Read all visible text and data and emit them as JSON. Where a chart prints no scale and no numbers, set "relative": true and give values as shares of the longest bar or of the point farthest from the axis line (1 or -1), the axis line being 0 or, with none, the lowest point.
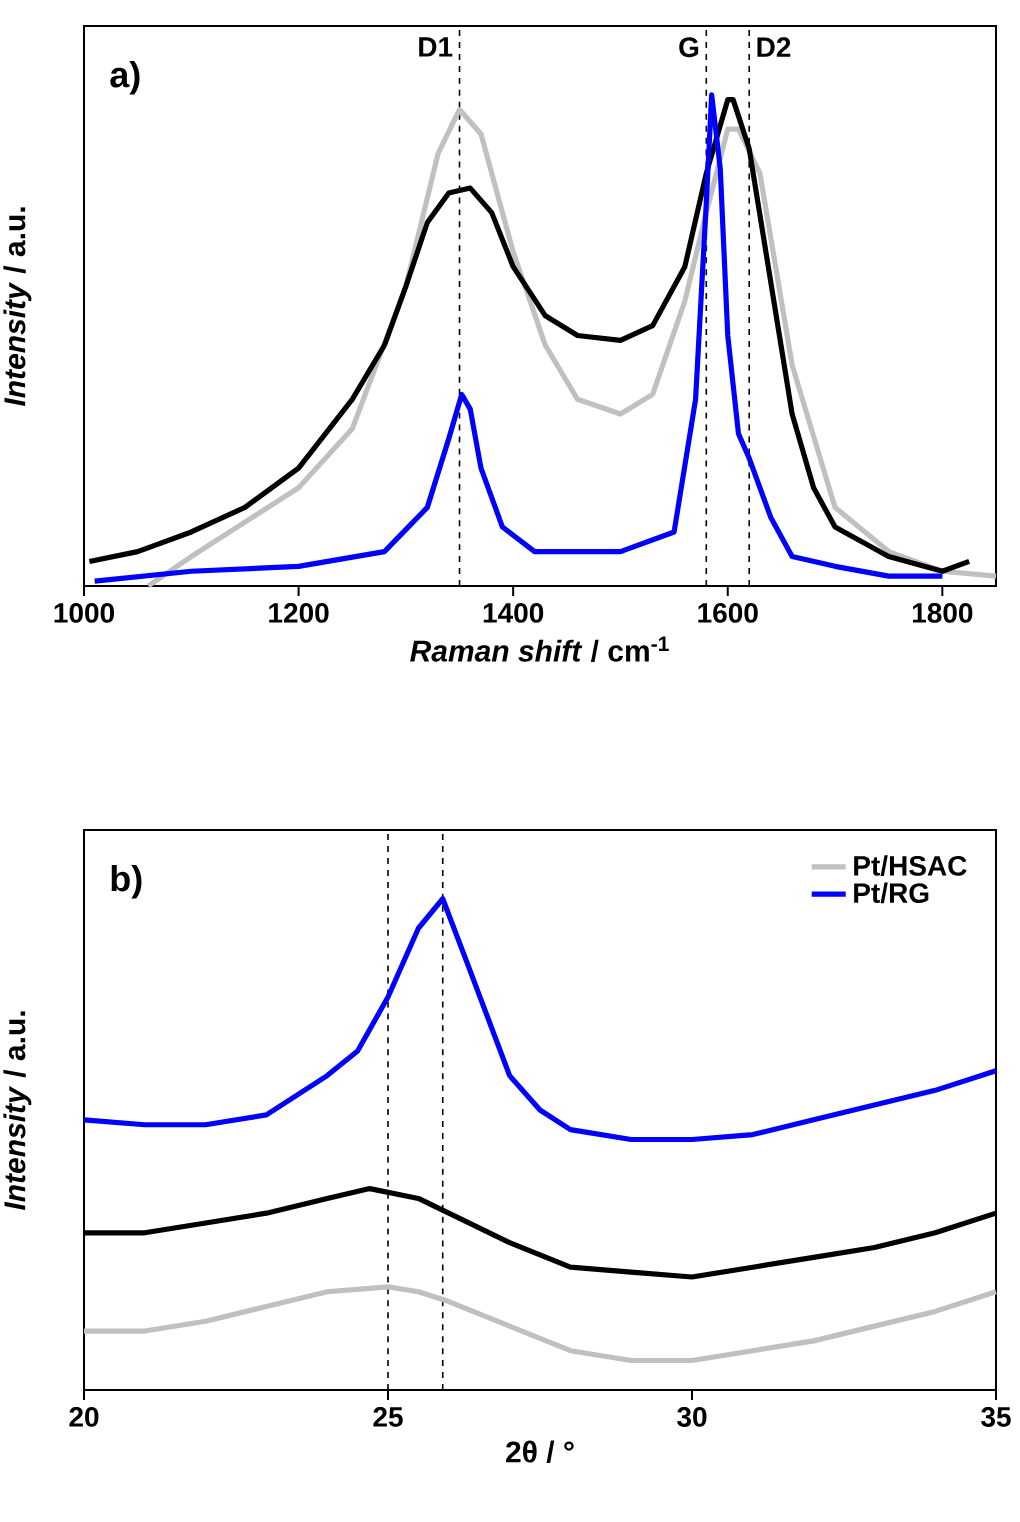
{
  "chart_data": [
    {
      "type": "line",
      "xlabel": "*Raman shift* / cm$^{-1}$",
      "ylabel": "*Intensity* / a.u.",
      "relative": true,
      "xlim": [
        1000,
        1850
      ],
      "xticks": [
        1000,
        1200,
        1400,
        1600,
        1800
      ],
      "tick_labels": "x",
      "legend": false,
      "annotations": [
        "a)"
      ],
      "ref_lines": [
        {
          "axis": "x",
          "value": 1350,
          "label": "D1",
          "line_style": "dashed"
        },
        {
          "axis": "x",
          "value": 1580,
          "label": "G",
          "line_style": "dashed"
        },
        {
          "axis": "x",
          "value": 1620,
          "label": "D2",
          "line_style": "dashed"
        }
      ],
      "series": [
        {
          "color": "#c0c0c0",
          "x": [
            1060,
            1100,
            1200,
            1250,
            1300,
            1330,
            1350,
            1370,
            1400,
            1430,
            1460,
            1500,
            1530,
            1560,
            1580,
            1600,
            1610,
            1630,
            1660,
            1700,
            1750,
            1800,
            1850
          ],
          "values": [
            0.0,
            0.06,
            0.2,
            0.32,
            0.61,
            0.88,
            0.97,
            0.92,
            0.68,
            0.49,
            0.38,
            0.35,
            0.39,
            0.58,
            0.76,
            0.93,
            0.93,
            0.84,
            0.45,
            0.16,
            0.07,
            0.03,
            0.02
          ]
        },
        {
          "color": "#000000",
          "x": [
            1005,
            1050,
            1100,
            1150,
            1200,
            1250,
            1280,
            1300,
            1320,
            1340,
            1360,
            1380,
            1400,
            1430,
            1460,
            1500,
            1530,
            1560,
            1580,
            1600,
            1605,
            1620,
            1640,
            1660,
            1680,
            1700,
            1750,
            1800,
            1825
          ],
          "values": [
            0.05,
            0.07,
            0.11,
            0.16,
            0.24,
            0.38,
            0.49,
            0.61,
            0.74,
            0.8,
            0.81,
            0.76,
            0.65,
            0.55,
            0.51,
            0.5,
            0.53,
            0.65,
            0.84,
            0.99,
            0.99,
            0.89,
            0.62,
            0.35,
            0.2,
            0.12,
            0.06,
            0.03,
            0.05
          ]
        },
        {
          "color": "#0000ff",
          "x": [
            1010,
            1100,
            1200,
            1280,
            1320,
            1340,
            1352,
            1360,
            1370,
            1390,
            1420,
            1500,
            1550,
            1570,
            1580,
            1585,
            1593,
            1600,
            1610,
            1620,
            1640,
            1660,
            1700,
            1750,
            1800
          ],
          "values": [
            0.01,
            0.03,
            0.04,
            0.07,
            0.16,
            0.3,
            0.39,
            0.36,
            0.24,
            0.12,
            0.07,
            0.07,
            0.11,
            0.38,
            0.78,
            1.0,
            0.85,
            0.51,
            0.31,
            0.26,
            0.14,
            0.06,
            0.04,
            0.02,
            0.02
          ]
        }
      ]
    },
    {
      "type": "line",
      "xlabel": "2θ / °",
      "ylabel": "*Intensity* / a.u.",
      "relative": true,
      "xlim": [
        20,
        35
      ],
      "xticks": [
        20,
        25,
        30,
        35
      ],
      "tick_labels": "x",
      "legend": "top right",
      "annotations": [
        "b)"
      ],
      "ref_lines": [
        {
          "axis": "x",
          "value": 25,
          "line_style": "dashed"
        },
        {
          "axis": "x",
          "value": 25.9,
          "line_style": "dashed"
        }
      ],
      "series": [
        {
          "name": "Pt/HSAC",
          "color": "#c0c0c0",
          "x": [
            20,
            21,
            22,
            23,
            24,
            25,
            25.5,
            26,
            27,
            28,
            29,
            30,
            31,
            32,
            33,
            34,
            35
          ],
          "values": [
            0.12,
            0.12,
            0.14,
            0.17,
            0.2,
            0.21,
            0.2,
            0.18,
            0.13,
            0.08,
            0.06,
            0.06,
            0.08,
            0.1,
            0.13,
            0.16,
            0.2
          ]
        },
        {
          "color": "#000000",
          "x": [
            20,
            21,
            22,
            23,
            24,
            24.7,
            25.5,
            26,
            27,
            28,
            29,
            30,
            31,
            32,
            33,
            34,
            35
          ],
          "values": [
            0.32,
            0.32,
            0.34,
            0.36,
            0.39,
            0.41,
            0.39,
            0.36,
            0.3,
            0.25,
            0.24,
            0.23,
            0.25,
            0.27,
            0.29,
            0.32,
            0.36
          ]
        },
        {
          "name": "Pt/RG",
          "color": "#0000ff",
          "x": [
            20,
            21,
            22,
            23,
            24,
            24.5,
            25,
            25.5,
            25.9,
            26.3,
            27,
            27.5,
            28,
            29,
            30,
            31,
            32,
            33,
            34,
            35
          ],
          "values": [
            0.55,
            0.54,
            0.54,
            0.56,
            0.64,
            0.69,
            0.8,
            0.94,
            1.0,
            0.87,
            0.64,
            0.57,
            0.53,
            0.51,
            0.51,
            0.52,
            0.55,
            0.58,
            0.61,
            0.65
          ]
        }
      ]
    }
  ]
}
